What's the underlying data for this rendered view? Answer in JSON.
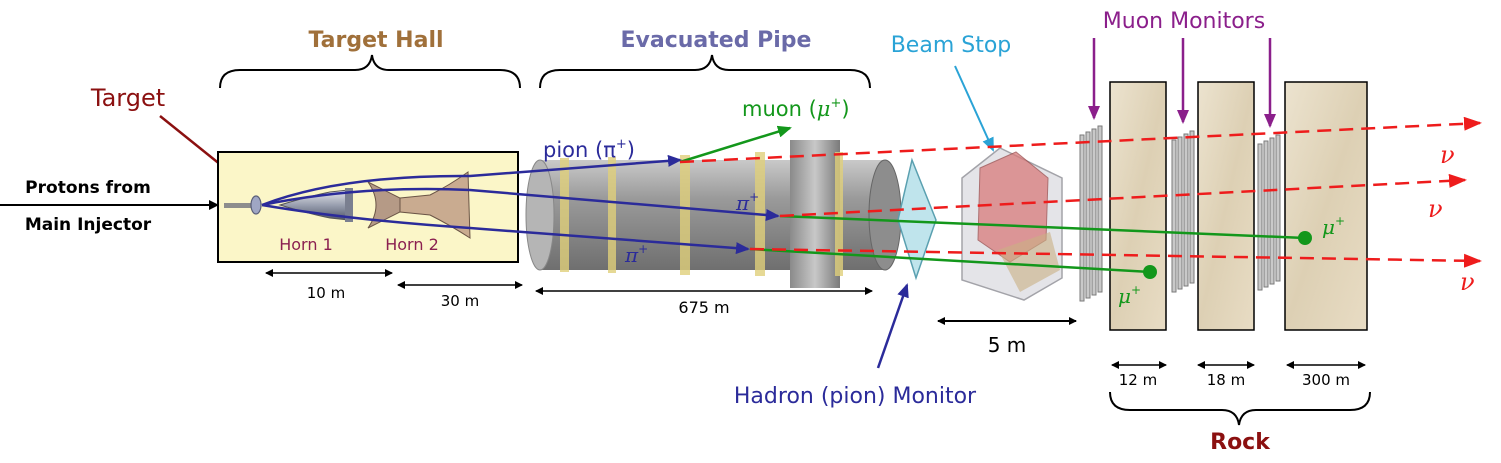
{
  "sections": {
    "target_hall": "Target Hall",
    "evacuated_pipe": "Evacuated Pipe",
    "beam_stop": "Beam Stop",
    "muon_monitors": "Muon Monitors",
    "rock": "Rock"
  },
  "labels": {
    "target": "Target",
    "protons_line1": "Protons from",
    "protons_line2": "Main Injector",
    "horn1": "Horn 1",
    "horn2": "Horn 2",
    "hadron_monitor": "Hadron (pion) Monitor"
  },
  "particles": {
    "pion": "pion (π",
    "pion_sup": "+",
    "pion_close": ")",
    "muon": "muon (",
    "muon_mu": "μ",
    "muon_sup": "+",
    "muon_close": ")",
    "pi": "π",
    "pi_sup": "+",
    "mu": "μ",
    "mu_sup": "+",
    "nu": "ν"
  },
  "dimensions": {
    "d10": "10 m",
    "d30": "30 m",
    "d675": "675 m",
    "d5": "5 m",
    "d12": "12 m",
    "d18": "18 m",
    "d300": "300 m"
  },
  "colors": {
    "target_hall_text": "#a0703a",
    "pipe_text": "#6a6aa8",
    "beam_stop_text": "#2aa3d6",
    "muon_monitor_text": "#8b1f8b",
    "rock_text": "#8b1010",
    "target_text": "#8b1010",
    "pion_track": "#2b2b9a",
    "muon_track": "#13971b",
    "neutrino": "#ee1c1c",
    "hall_fill": "#fbf6c8",
    "rock_fill": "#e6dbc5"
  }
}
